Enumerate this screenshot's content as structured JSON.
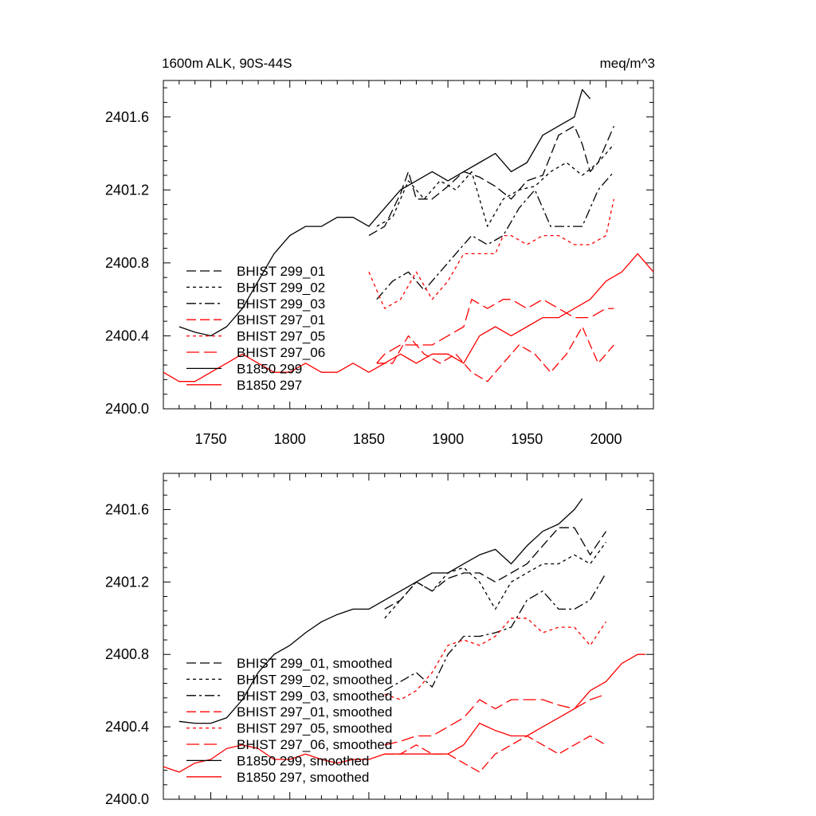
{
  "chart_data": [
    {
      "type": "line",
      "title_left": "1600m ALK, 90S-44S",
      "title_right": "meq/m^3",
      "xlabel": "",
      "ylabel": "",
      "xlim": [
        1720,
        2030
      ],
      "ylim": [
        2400.0,
        2401.8
      ],
      "x_ticks": [
        1750,
        1800,
        1850,
        1900,
        1950,
        2000
      ],
      "y_ticks": [
        2400.0,
        2400.4,
        2400.8,
        2401.2,
        2401.6
      ],
      "y_tick_labels": [
        "2400.0",
        "2400.4",
        "2400.8",
        "2401.2",
        "2401.6"
      ],
      "show_x_tick_labels": true,
      "legend_position": "bottom-left",
      "series": [
        {
          "name": "BHIST 299_01",
          "color": "#000000",
          "dash": "dash",
          "x": [
            1850,
            1860,
            1870,
            1875,
            1880,
            1890,
            1900,
            1910,
            1920,
            1930,
            1940,
            1950,
            1960,
            1970,
            1980,
            1985,
            1990,
            1995,
            2000,
            2005
          ],
          "y": [
            2400.95,
            2401.0,
            2401.18,
            2401.3,
            2401.15,
            2401.15,
            2401.22,
            2401.3,
            2401.27,
            2401.22,
            2401.15,
            2401.25,
            2401.28,
            2401.5,
            2401.55,
            2401.45,
            2401.3,
            2401.35,
            2401.45,
            2401.55
          ]
        },
        {
          "name": "BHIST 299_02",
          "color": "#000000",
          "dash": "dot",
          "x": [
            1855,
            1865,
            1875,
            1885,
            1895,
            1905,
            1915,
            1925,
            1935,
            1945,
            1955,
            1965,
            1975,
            1985,
            1995,
            2005
          ],
          "y": [
            2401.0,
            2401.05,
            2401.25,
            2401.15,
            2401.25,
            2401.2,
            2401.3,
            2401.0,
            2401.15,
            2401.2,
            2401.22,
            2401.3,
            2401.35,
            2401.28,
            2401.35,
            2401.45
          ]
        },
        {
          "name": "BHIST 299_03",
          "color": "#000000",
          "dash": "dashdot",
          "x": [
            1855,
            1865,
            1875,
            1885,
            1895,
            1905,
            1915,
            1925,
            1935,
            1945,
            1955,
            1965,
            1975,
            1985,
            1995,
            2005
          ],
          "y": [
            2400.6,
            2400.7,
            2400.75,
            2400.65,
            2400.75,
            2400.85,
            2400.95,
            2400.9,
            2400.95,
            2401.1,
            2401.2,
            2401.0,
            2401.0,
            2401.0,
            2401.2,
            2401.3
          ]
        },
        {
          "name": "BHIST 297_01",
          "color": "#ff0000",
          "dash": "dash",
          "x": [
            1855,
            1865,
            1875,
            1885,
            1895,
            1905,
            1915,
            1925,
            1935,
            1945,
            1955,
            1965,
            1975,
            1985,
            1995,
            2005
          ],
          "y": [
            2400.25,
            2400.25,
            2400.4,
            2400.3,
            2400.25,
            2400.3,
            2400.2,
            2400.15,
            2400.25,
            2400.35,
            2400.3,
            2400.2,
            2400.3,
            2400.45,
            2400.25,
            2400.35
          ]
        },
        {
          "name": "BHIST 297_05",
          "color": "#ff0000",
          "dash": "dot",
          "x": [
            1850,
            1860,
            1870,
            1880,
            1890,
            1895,
            1900,
            1910,
            1920,
            1930,
            1935,
            1940,
            1950,
            1960,
            1970,
            1980,
            1990,
            2000,
            2005
          ],
          "y": [
            2400.75,
            2400.55,
            2400.6,
            2400.75,
            2400.6,
            2400.65,
            2400.7,
            2400.85,
            2400.85,
            2400.85,
            2400.95,
            2400.95,
            2400.9,
            2400.95,
            2400.95,
            2400.9,
            2400.9,
            2400.95,
            2401.15
          ]
        },
        {
          "name": "BHIST 297_06",
          "color": "#ff0000",
          "dash": "longdash",
          "x": [
            1855,
            1860,
            1870,
            1880,
            1890,
            1900,
            1910,
            1915,
            1925,
            1935,
            1940,
            1950,
            1960,
            1970,
            1980,
            1990,
            2000,
            2005
          ],
          "y": [
            2400.25,
            2400.3,
            2400.35,
            2400.35,
            2400.35,
            2400.4,
            2400.45,
            2400.6,
            2400.55,
            2400.6,
            2400.6,
            2400.55,
            2400.6,
            2400.55,
            2400.5,
            2400.5,
            2400.55,
            2400.55
          ]
        },
        {
          "name": "B1850 299",
          "color": "#000000",
          "dash": "solid",
          "x": [
            1730,
            1740,
            1750,
            1760,
            1770,
            1780,
            1790,
            1800,
            1810,
            1820,
            1830,
            1840,
            1850,
            1860,
            1870,
            1880,
            1890,
            1900,
            1910,
            1920,
            1930,
            1940,
            1950,
            1960,
            1970,
            1980,
            1985,
            1990
          ],
          "y": [
            2400.45,
            2400.42,
            2400.4,
            2400.45,
            2400.55,
            2400.7,
            2400.85,
            2400.95,
            2401.0,
            2401.0,
            2401.05,
            2401.05,
            2401.0,
            2401.1,
            2401.2,
            2401.25,
            2401.3,
            2401.25,
            2401.3,
            2401.35,
            2401.4,
            2401.3,
            2401.35,
            2401.5,
            2401.55,
            2401.6,
            2401.75,
            2401.7
          ]
        },
        {
          "name": "B1850 297",
          "color": "#ff0000",
          "dash": "solid",
          "x": [
            1720,
            1730,
            1740,
            1750,
            1760,
            1770,
            1780,
            1790,
            1800,
            1810,
            1820,
            1830,
            1840,
            1850,
            1860,
            1870,
            1880,
            1890,
            1900,
            1910,
            1920,
            1930,
            1940,
            1950,
            1960,
            1970,
            1980,
            1990,
            2000,
            2010,
            2020,
            2030
          ],
          "y": [
            2400.2,
            2400.15,
            2400.15,
            2400.2,
            2400.25,
            2400.3,
            2400.25,
            2400.2,
            2400.2,
            2400.25,
            2400.2,
            2400.2,
            2400.25,
            2400.2,
            2400.25,
            2400.3,
            2400.25,
            2400.3,
            2400.3,
            2400.25,
            2400.4,
            2400.45,
            2400.4,
            2400.45,
            2400.5,
            2400.5,
            2400.55,
            2400.6,
            2400.7,
            2400.75,
            2400.85,
            2400.75
          ]
        }
      ]
    },
    {
      "type": "line",
      "title_left": "",
      "title_right": "",
      "xlabel": "",
      "ylabel": "",
      "xlim": [
        1720,
        2030
      ],
      "ylim": [
        2400.0,
        2401.8
      ],
      "x_ticks": [
        1750,
        1800,
        1850,
        1900,
        1950,
        2000
      ],
      "y_ticks": [
        2400.0,
        2400.4,
        2400.8,
        2401.2,
        2401.6
      ],
      "y_tick_labels": [
        "2400.0",
        "2400.4",
        "2400.8",
        "2401.2",
        "2401.6"
      ],
      "show_x_tick_labels": false,
      "legend_position": "bottom-left",
      "series": [
        {
          "name": "BHIST 299_01, smoothed",
          "color": "#000000",
          "dash": "dash",
          "x": [
            1860,
            1870,
            1880,
            1890,
            1900,
            1910,
            1920,
            1930,
            1940,
            1950,
            1960,
            1970,
            1980,
            1990,
            2000
          ],
          "y": [
            2401.05,
            2401.1,
            2401.2,
            2401.15,
            2401.22,
            2401.25,
            2401.25,
            2401.2,
            2401.25,
            2401.3,
            2401.4,
            2401.5,
            2401.5,
            2401.35,
            2401.48
          ]
        },
        {
          "name": "BHIST 299_02, smoothed",
          "color": "#000000",
          "dash": "dot",
          "x": [
            1860,
            1870,
            1880,
            1890,
            1900,
            1910,
            1920,
            1930,
            1940,
            1950,
            1960,
            1970,
            1980,
            1990,
            2000
          ],
          "y": [
            2401.0,
            2401.1,
            2401.2,
            2401.15,
            2401.25,
            2401.28,
            2401.2,
            2401.05,
            2401.2,
            2401.25,
            2401.3,
            2401.3,
            2401.35,
            2401.3,
            2401.42
          ]
        },
        {
          "name": "BHIST 299_03, smoothed",
          "color": "#000000",
          "dash": "dashdot",
          "x": [
            1860,
            1870,
            1880,
            1890,
            1900,
            1910,
            1920,
            1930,
            1940,
            1950,
            1960,
            1970,
            1980,
            1990,
            2000
          ],
          "y": [
            2400.6,
            2400.65,
            2400.7,
            2400.62,
            2400.8,
            2400.9,
            2400.9,
            2400.92,
            2400.95,
            2401.1,
            2401.15,
            2401.05,
            2401.05,
            2401.1,
            2401.25
          ]
        },
        {
          "name": "BHIST 297_01, smoothed",
          "color": "#ff0000",
          "dash": "dash",
          "x": [
            1860,
            1870,
            1880,
            1890,
            1900,
            1910,
            1920,
            1930,
            1940,
            1950,
            1960,
            1970,
            1980,
            1990,
            2000
          ],
          "y": [
            2400.25,
            2400.25,
            2400.3,
            2400.25,
            2400.25,
            2400.2,
            2400.15,
            2400.25,
            2400.3,
            2400.35,
            2400.3,
            2400.25,
            2400.3,
            2400.35,
            2400.3
          ]
        },
        {
          "name": "BHIST 297_05, smoothed",
          "color": "#ff0000",
          "dash": "dot",
          "x": [
            1860,
            1870,
            1880,
            1890,
            1900,
            1910,
            1920,
            1930,
            1940,
            1950,
            1960,
            1970,
            1980,
            1990,
            2000
          ],
          "y": [
            2400.58,
            2400.55,
            2400.6,
            2400.7,
            2400.85,
            2400.88,
            2400.85,
            2400.9,
            2401.0,
            2401.0,
            2400.92,
            2400.95,
            2400.95,
            2400.85,
            2400.98
          ]
        },
        {
          "name": "BHIST 297_06, smoothed",
          "color": "#ff0000",
          "dash": "longdash",
          "x": [
            1860,
            1870,
            1880,
            1890,
            1900,
            1910,
            1920,
            1930,
            1940,
            1950,
            1960,
            1970,
            1980,
            1990,
            2000
          ],
          "y": [
            2400.3,
            2400.32,
            2400.35,
            2400.35,
            2400.4,
            2400.45,
            2400.55,
            2400.5,
            2400.55,
            2400.55,
            2400.55,
            2400.52,
            2400.5,
            2400.55,
            2400.58
          ]
        },
        {
          "name": "B1850 299, smoothed",
          "color": "#000000",
          "dash": "solid",
          "x": [
            1730,
            1740,
            1750,
            1760,
            1770,
            1780,
            1790,
            1800,
            1810,
            1820,
            1830,
            1840,
            1850,
            1860,
            1870,
            1880,
            1890,
            1900,
            1910,
            1920,
            1930,
            1940,
            1950,
            1960,
            1970,
            1980,
            1985
          ],
          "y": [
            2400.43,
            2400.42,
            2400.42,
            2400.45,
            2400.55,
            2400.7,
            2400.8,
            2400.85,
            2400.92,
            2400.98,
            2401.02,
            2401.05,
            2401.05,
            2401.1,
            2401.15,
            2401.2,
            2401.25,
            2401.25,
            2401.3,
            2401.35,
            2401.38,
            2401.3,
            2401.4,
            2401.48,
            2401.52,
            2401.6,
            2401.66
          ]
        },
        {
          "name": "B1850 297, smoothed",
          "color": "#ff0000",
          "dash": "solid",
          "x": [
            1720,
            1730,
            1740,
            1750,
            1760,
            1770,
            1780,
            1790,
            1800,
            1810,
            1820,
            1830,
            1840,
            1850,
            1860,
            1870,
            1880,
            1890,
            1900,
            1910,
            1920,
            1930,
            1940,
            1950,
            1960,
            1970,
            1980,
            1990,
            2000,
            2010,
            2020,
            2025
          ],
          "y": [
            2400.18,
            2400.15,
            2400.2,
            2400.22,
            2400.28,
            2400.3,
            2400.28,
            2400.22,
            2400.22,
            2400.25,
            2400.22,
            2400.2,
            2400.22,
            2400.22,
            2400.25,
            2400.25,
            2400.25,
            2400.25,
            2400.25,
            2400.3,
            2400.42,
            2400.38,
            2400.35,
            2400.35,
            2400.4,
            2400.45,
            2400.5,
            2400.6,
            2400.65,
            2400.75,
            2400.8,
            2400.8
          ]
        }
      ]
    }
  ]
}
